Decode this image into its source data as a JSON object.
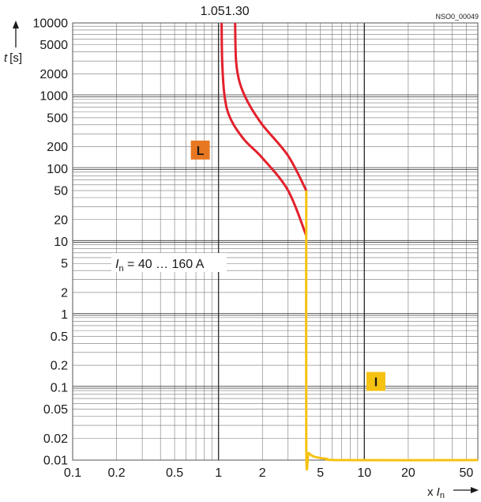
{
  "chart_data": {
    "type": "line",
    "title": "",
    "figure_id": "NSO0_00049",
    "x_axis": {
      "label_prefix": "x ",
      "label_symbol": "I",
      "label_subscript": "n",
      "scale": "log",
      "range": [
        0.1,
        60
      ],
      "tick_labels": [
        {
          "value": 0.1,
          "label": "0.1"
        },
        {
          "value": 0.2,
          "label": "0.2"
        },
        {
          "value": 0.5,
          "label": "0.5"
        },
        {
          "value": 1,
          "label": "1"
        },
        {
          "value": 2,
          "label": "2"
        },
        {
          "value": 5,
          "label": "5"
        },
        {
          "value": 10,
          "label": "10"
        },
        {
          "value": 20,
          "label": "20"
        },
        {
          "value": 50,
          "label": "50"
        }
      ]
    },
    "y_axis": {
      "label_symbol": "t",
      "label_unit": "[s]",
      "scale": "log",
      "range": [
        0.01,
        10000
      ],
      "tick_labels": [
        {
          "value": 10000,
          "label": "10000"
        },
        {
          "value": 5000,
          "label": "5000"
        },
        {
          "value": 2000,
          "label": "2000"
        },
        {
          "value": 1000,
          "label": "1000"
        },
        {
          "value": 500,
          "label": "500"
        },
        {
          "value": 200,
          "label": "200"
        },
        {
          "value": 100,
          "label": "100"
        },
        {
          "value": 50,
          "label": "50"
        },
        {
          "value": 20,
          "label": "20"
        },
        {
          "value": 10,
          "label": "10"
        },
        {
          "value": 5,
          "label": "5"
        },
        {
          "value": 2,
          "label": "2"
        },
        {
          "value": 1,
          "label": "1"
        },
        {
          "value": 0.5,
          "label": "0.5"
        },
        {
          "value": 0.2,
          "label": "0.2"
        },
        {
          "value": 0.1,
          "label": "0.1"
        },
        {
          "value": 0.05,
          "label": "0.05"
        },
        {
          "value": 0.02,
          "label": "0.02"
        },
        {
          "value": 0.01,
          "label": "0.01"
        }
      ]
    },
    "grid": true,
    "top_labels": [
      "1.05",
      "1.30"
    ],
    "annotation": {
      "symbol": "I",
      "subscript": "n",
      "text": " = 40 … 160 A"
    },
    "series": [
      {
        "color": "#e3202c",
        "points": [
          [
            1.05,
            10000
          ],
          [
            1.06,
            3000
          ],
          [
            1.1,
            1000
          ],
          [
            1.2,
            500
          ],
          [
            1.5,
            250
          ],
          [
            2,
            140
          ],
          [
            3,
            50
          ],
          [
            4,
            12
          ]
        ]
      },
      {
        "color": "#e3202c",
        "points": [
          [
            1.3,
            10000
          ],
          [
            1.32,
            3000
          ],
          [
            1.4,
            1500
          ],
          [
            1.6,
            800
          ],
          [
            2,
            400
          ],
          [
            3,
            150
          ],
          [
            4,
            50
          ]
        ]
      },
      {
        "color": "#f5c211",
        "points": [
          [
            4,
            50
          ],
          [
            4,
            0.014
          ],
          [
            4.15,
            0.0125
          ],
          [
            4.5,
            0.0112
          ],
          [
            5.5,
            0.0104
          ],
          [
            7,
            0.01
          ],
          [
            60,
            0.01
          ]
        ]
      }
    ],
    "region_labels": [
      {
        "label": "L",
        "x": 0.75,
        "y": 180,
        "color": "#e87722"
      },
      {
        "label": "I",
        "x": 12,
        "y": 0.12,
        "color": "#f5c211"
      }
    ]
  }
}
